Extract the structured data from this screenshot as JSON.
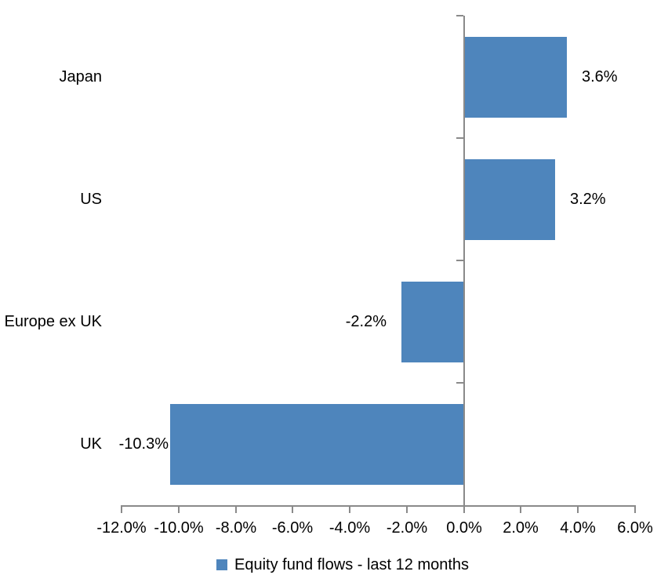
{
  "chart_data": {
    "type": "bar",
    "orientation": "horizontal",
    "title": "",
    "categories": [
      "Japan",
      "US",
      "Europe ex UK",
      "UK"
    ],
    "series": [
      {
        "name": "Equity fund flows - last 12 months",
        "values": [
          3.6,
          3.2,
          -2.2,
          -10.3
        ],
        "color": "#4E85BC"
      }
    ],
    "data_labels": [
      "3.6%",
      "3.2%",
      "-2.2%",
      "-10.3%"
    ],
    "x_axis": {
      "min": -12,
      "max": 6,
      "tick_values": [
        -12,
        -10,
        -8,
        -6,
        -4,
        -2,
        0,
        2,
        4,
        6
      ],
      "tick_labels": [
        "-12.0%",
        "-10.0%",
        "-8.0%",
        "-6.0%",
        "-4.0%",
        "-2.0%",
        "0.0%",
        "2.0%",
        "4.0%",
        "6.0%"
      ]
    },
    "legend": {
      "position": "bottom",
      "entries": [
        {
          "label": "Equity fund flows - last 12 months",
          "color": "#4E85BC"
        }
      ]
    },
    "grid": false,
    "axis_color": "#8A8A8A",
    "text_color": "#000000",
    "background": "#FFFFFF"
  }
}
